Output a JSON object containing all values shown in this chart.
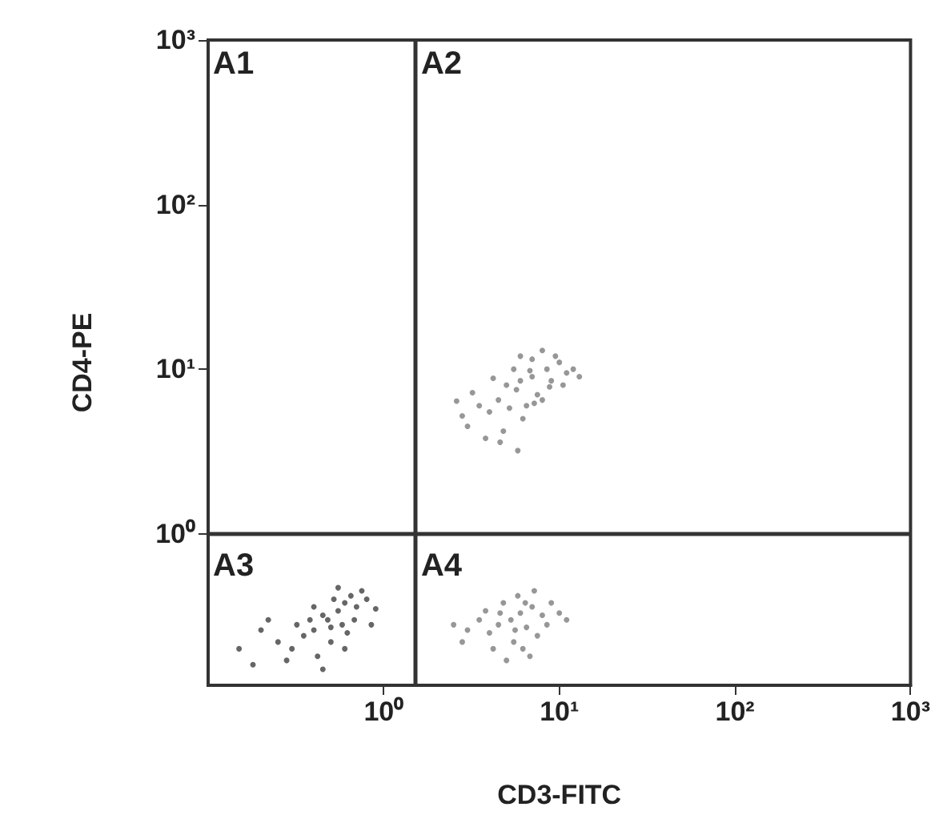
{
  "chart_data": {
    "type": "scatter",
    "xlabel": "CD3-FITC",
    "ylabel": "CD4-PE",
    "log": "xy",
    "grid": false,
    "marker": "circle",
    "xlim": [
      0.1,
      1000
    ],
    "ylim": [
      0.12,
      1000
    ],
    "xticks": [
      {
        "value": 1,
        "label": "10⁰"
      },
      {
        "value": 10,
        "label": "10¹"
      },
      {
        "value": 100,
        "label": "10²"
      },
      {
        "value": 1000,
        "label": "10³"
      }
    ],
    "yticks": [
      {
        "value": 1,
        "label": "10⁰"
      },
      {
        "value": 10,
        "label": "10¹"
      },
      {
        "value": 100,
        "label": "10²"
      },
      {
        "value": 1000,
        "label": "10³"
      }
    ],
    "ref_lines": [
      {
        "axis": "x",
        "value": 1.5,
        "color": "#333333"
      },
      {
        "axis": "y",
        "value": 1,
        "color": "#333333"
      }
    ],
    "annotations": [
      "A1",
      "A2",
      "A3",
      "A4"
    ],
    "series": [
      {
        "color": "#8c8c8c",
        "x": [
          5.7,
          4.5,
          7,
          8.5,
          6,
          5,
          7.5,
          9,
          4,
          3.5,
          6.5,
          10,
          11,
          5.5,
          3,
          4.8,
          6.2,
          8,
          9.5,
          7,
          12,
          3.2,
          2.8,
          4.2,
          6.8,
          8.8,
          5.2,
          7.2,
          4.6,
          5.8,
          3.8,
          10.5,
          13,
          6,
          8,
          2.6
        ],
        "values": [
          7.5,
          6.5,
          9,
          10,
          8.5,
          8,
          7,
          8.5,
          5.5,
          6,
          6,
          11,
          9.5,
          10,
          4.5,
          4.2,
          5,
          6.5,
          12,
          11.5,
          10,
          7.2,
          5.2,
          8.8,
          9.8,
          7.8,
          5.8,
          6.2,
          3.6,
          3.2,
          3.8,
          8,
          9,
          12,
          13,
          6.4
        ]
      },
      {
        "color": "#555555",
        "x": [
          0.48,
          0.4,
          0.55,
          0.6,
          0.45,
          0.35,
          0.5,
          0.65,
          0.7,
          0.3,
          0.25,
          0.2,
          0.42,
          0.58,
          0.75,
          0.8,
          0.38,
          0.52,
          0.32,
          0.28,
          0.6,
          0.68,
          0.45,
          0.15,
          0.18,
          0.9,
          0.85,
          0.55,
          0.4,
          0.22,
          0.62,
          0.5
        ],
        "values": [
          0.3,
          0.26,
          0.34,
          0.38,
          0.32,
          0.24,
          0.22,
          0.42,
          0.36,
          0.2,
          0.22,
          0.26,
          0.18,
          0.28,
          0.45,
          0.4,
          0.3,
          0.4,
          0.28,
          0.17,
          0.2,
          0.3,
          0.15,
          0.2,
          0.16,
          0.35,
          0.28,
          0.47,
          0.36,
          0.3,
          0.25,
          0.27
        ]
      },
      {
        "color": "#8c8c8c",
        "x": [
          5.3,
          4.5,
          6,
          7,
          4,
          3.5,
          5.5,
          6.5,
          8,
          9,
          3,
          4.8,
          5.8,
          7.5,
          6.2,
          4.2,
          3.8,
          8.5,
          10,
          2.5,
          5,
          6.8,
          7.2,
          4.6,
          5.6,
          2.8,
          11,
          6.4
        ],
        "values": [
          0.3,
          0.28,
          0.33,
          0.36,
          0.25,
          0.3,
          0.22,
          0.27,
          0.32,
          0.38,
          0.26,
          0.38,
          0.42,
          0.24,
          0.2,
          0.2,
          0.34,
          0.28,
          0.33,
          0.28,
          0.17,
          0.18,
          0.45,
          0.33,
          0.26,
          0.22,
          0.3,
          0.38
        ]
      }
    ]
  }
}
